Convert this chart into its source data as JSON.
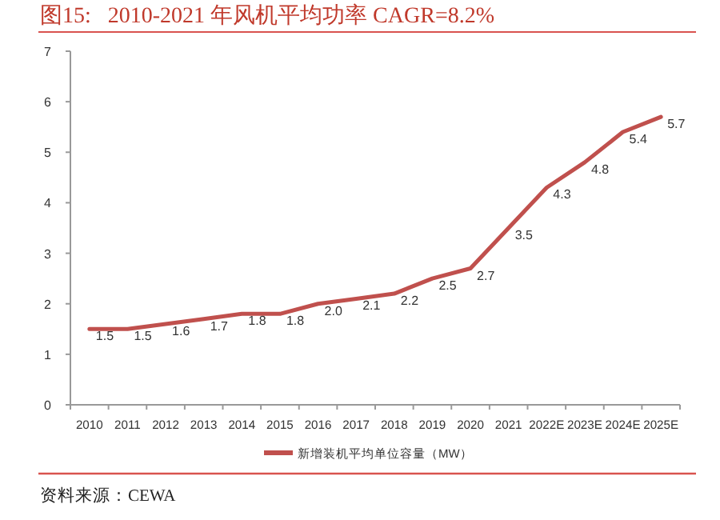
{
  "chart_data": {
    "type": "line",
    "title": "图15:   2010-2021 年风机平均功率 CAGR=8.2%",
    "categories": [
      "2010",
      "2011",
      "2012",
      "2013",
      "2014",
      "2015",
      "2016",
      "2017",
      "2018",
      "2019",
      "2020",
      "2021",
      "2022E",
      "2023E",
      "2024E",
      "2025E"
    ],
    "series": [
      {
        "name": "新增装机平均单位容量（MW）",
        "color": "#c0504d",
        "values": [
          1.5,
          1.5,
          1.6,
          1.7,
          1.8,
          1.8,
          2.0,
          2.1,
          2.2,
          2.5,
          2.7,
          3.5,
          4.3,
          4.8,
          5.4,
          5.7
        ],
        "value_labels": [
          "1.5",
          "1.5",
          "1.6",
          "1.7",
          "1.8",
          "1.8",
          "2.0",
          "2.1",
          "2.2",
          "2.5",
          "2.7",
          "3.5",
          "4.3",
          "4.8",
          "5.4",
          "5.7"
        ]
      }
    ],
    "ylim": [
      0,
      7
    ],
    "yticks": [
      0,
      1,
      2,
      3,
      4,
      5,
      6,
      7
    ],
    "legend": "bottom",
    "grid": false,
    "marker": "none",
    "line_style": "solid",
    "annotations": [
      "资料来源：CEWA"
    ]
  }
}
